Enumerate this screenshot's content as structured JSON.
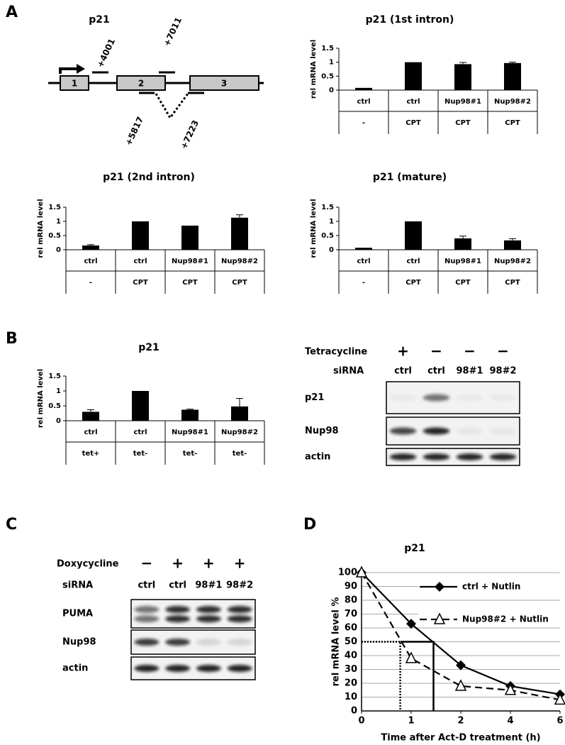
{
  "panel_labels": [
    "A",
    "B",
    "C",
    "D"
  ],
  "gene_diagram": {
    "title": "p21",
    "exons": [
      "1",
      "2",
      "3"
    ],
    "primers": [
      "+4001",
      "+7011",
      "+5817",
      "+7223"
    ]
  },
  "chart_data": [
    {
      "type": "bar",
      "title": "p21 (1st intron)",
      "y_label": "rel mRNA level",
      "categories": [
        "ctrl",
        "ctrl",
        "Nup98#1",
        "Nup98#2"
      ],
      "treatments": [
        "-",
        "CPT",
        "CPT",
        "CPT"
      ],
      "values": [
        0.08,
        1,
        0.93,
        0.97
      ],
      "errors": [
        null,
        null,
        0.06,
        0.03
      ],
      "color": "#000000",
      "ylim": [
        0,
        1.5
      ],
      "yticks": [
        0,
        0.5,
        1,
        1.5
      ]
    },
    {
      "type": "bar",
      "title": "p21 (2nd intron)",
      "y_label": "rel mRNA level",
      "categories": [
        "ctrl",
        "ctrl",
        "Nup98#1",
        "Nup98#2"
      ],
      "treatments": [
        "-",
        "CPT",
        "CPT",
        "CPT"
      ],
      "values": [
        0.15,
        1,
        0.85,
        1.13
      ],
      "errors": [
        0.03,
        null,
        null,
        0.1
      ],
      "color": "#000000",
      "ylim": [
        0,
        1.5
      ],
      "yticks": [
        0,
        0.5,
        1,
        1.5
      ]
    },
    {
      "type": "bar",
      "title": "p21 (mature)",
      "y_label": "rel mRNA level",
      "categories": [
        "ctrl",
        "ctrl",
        "Nup98#1",
        "Nup98#2"
      ],
      "treatments": [
        "-",
        "CPT",
        "CPT",
        "CPT"
      ],
      "values": [
        0.07,
        1,
        0.4,
        0.33
      ],
      "errors": [
        null,
        null,
        0.08,
        0.06
      ],
      "color": "#000000",
      "ylim": [
        0,
        1.5
      ],
      "yticks": [
        0,
        0.5,
        1,
        1.5
      ]
    },
    {
      "type": "bar",
      "title": "p21",
      "y_label": "rel mRNA level",
      "categories": [
        "ctrl",
        "ctrl",
        "Nup98#1",
        "Nup98#2"
      ],
      "treatments": [
        "tet+",
        "tet-",
        "tet-",
        "tet-"
      ],
      "values": [
        0.3,
        1,
        0.37,
        0.48
      ],
      "errors": [
        0.07,
        null,
        0.02,
        0.27
      ],
      "color": "#000000",
      "ylim": [
        0,
        1.5
      ],
      "yticks": [
        0,
        0.5,
        1,
        1.5
      ]
    },
    {
      "type": "line",
      "title": "p21",
      "x_label": "Time after Act-D treatment (h)",
      "y_label": "rel mRNA level %",
      "categories": [
        "0",
        "1",
        "2",
        "4",
        "6"
      ],
      "series": [
        {
          "name": "ctrl + Nutlin",
          "color": "#000000",
          "marker": "diamond",
          "dash": "solid",
          "values": [
            100,
            63,
            33,
            18,
            12
          ]
        },
        {
          "name": "Nup98#2 + Nutlin",
          "color": "#000000",
          "marker": "triangle-open",
          "dash": "dashed",
          "values": [
            100,
            38,
            18,
            15,
            8
          ]
        }
      ],
      "ylim": [
        0,
        100
      ],
      "yticks": [
        0,
        10,
        20,
        30,
        40,
        50,
        60,
        70,
        80,
        90,
        100
      ],
      "grid": true,
      "half_life_level": 50,
      "half_lives": [
        1.45,
        0.78
      ]
    }
  ],
  "blots": [
    {
      "treatment": "Tetracycline",
      "treatment_signs": [
        "+",
        "−",
        "−",
        "−"
      ],
      "sirna_label": "siRNA",
      "sirna": [
        "ctrl",
        "ctrl",
        "98#1",
        "98#2"
      ],
      "bands": [
        "p21",
        "Nup98",
        "actin"
      ]
    },
    {
      "treatment": "Doxycycline",
      "treatment_signs": [
        "−",
        "+",
        "+",
        "+"
      ],
      "sirna_label": "siRNA",
      "sirna": [
        "ctrl",
        "ctrl",
        "98#1",
        "98#2"
      ],
      "bands": [
        "PUMA",
        "Nup98",
        "actin"
      ]
    }
  ]
}
